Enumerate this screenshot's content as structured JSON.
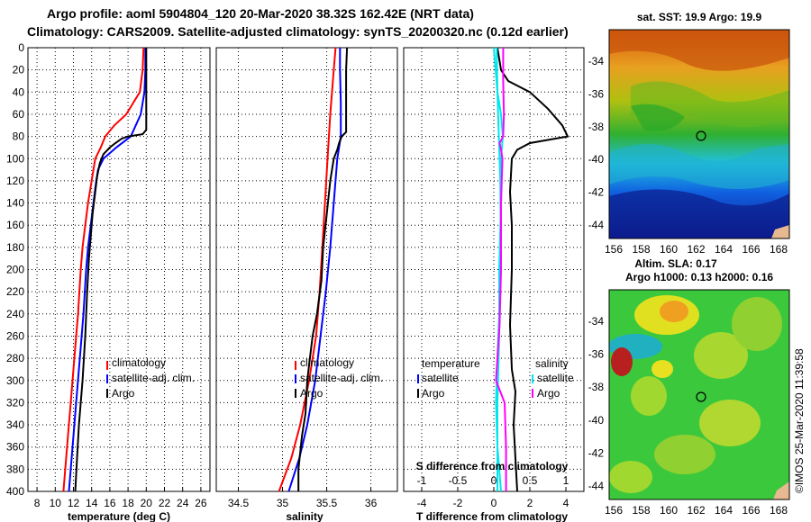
{
  "header": {
    "line1": "Argo profile: aoml 5904804_120 20-Mar-2020 38.32S 162.42E (NRT data)",
    "line2": "Climatology: CARS2009. Satellite-adjusted climatology: synTS_20200320.nc (0.12d earlier)"
  },
  "colors": {
    "climatology": "#ff0000",
    "satellite": "#0000ff",
    "argo": "#000000",
    "t_diff_satellite": "#00e5ee",
    "t_diff_argo": "#000000",
    "s_diff_satellite": "#00e5ee",
    "s_diff_argo": "#ff00ff"
  },
  "chart_data": [
    {
      "type": "line",
      "id": "temperature",
      "xlabel": "temperature (deg C)",
      "ylabel": "",
      "xlim": [
        7,
        27
      ],
      "ylim": [
        400,
        0
      ],
      "x_ticks": [
        8,
        10,
        12,
        14,
        16,
        18,
        20,
        22,
        24,
        26
      ],
      "y_ticks": [
        0,
        20,
        40,
        60,
        80,
        100,
        120,
        140,
        160,
        180,
        200,
        220,
        240,
        260,
        280,
        300,
        320,
        340,
        360,
        380,
        400
      ],
      "legend": [
        "climatology",
        "satellite-adj. clim.",
        "Argo"
      ],
      "series": [
        {
          "name": "climatology",
          "color": "#ff0000",
          "points": [
            [
              19.7,
              0
            ],
            [
              19.6,
              20
            ],
            [
              19.3,
              40
            ],
            [
              17.8,
              60
            ],
            [
              16.5,
              70
            ],
            [
              15.5,
              80
            ],
            [
              15.0,
              90
            ],
            [
              14.4,
              100
            ],
            [
              14.0,
              120
            ],
            [
              13.6,
              140
            ],
            [
              13.3,
              160
            ],
            [
              13.0,
              180
            ],
            [
              12.8,
              200
            ],
            [
              12.5,
              240
            ],
            [
              12.1,
              280
            ],
            [
              11.7,
              320
            ],
            [
              11.3,
              360
            ],
            [
              10.9,
              400
            ]
          ]
        },
        {
          "name": "satellite-adj. clim.",
          "color": "#0000ff",
          "points": [
            [
              19.9,
              0
            ],
            [
              19.9,
              20
            ],
            [
              19.8,
              40
            ],
            [
              19.4,
              60
            ],
            [
              18.3,
              80
            ],
            [
              16.7,
              90
            ],
            [
              15.3,
              100
            ],
            [
              14.7,
              110
            ],
            [
              14.5,
              120
            ],
            [
              14.2,
              140
            ],
            [
              13.9,
              160
            ],
            [
              13.6,
              180
            ],
            [
              13.4,
              200
            ],
            [
              13.1,
              240
            ],
            [
              12.7,
              280
            ],
            [
              12.3,
              320
            ],
            [
              11.9,
              360
            ],
            [
              11.5,
              400
            ]
          ]
        },
        {
          "name": "Argo",
          "color": "#000000",
          "points": [
            [
              20.0,
              0
            ],
            [
              20.0,
              30
            ],
            [
              20.0,
              60
            ],
            [
              20.0,
              74
            ],
            [
              19.6,
              78
            ],
            [
              18.8,
              79
            ],
            [
              18.0,
              80
            ],
            [
              17.3,
              82
            ],
            [
              16.6,
              86
            ],
            [
              16.0,
              90
            ],
            [
              15.3,
              96
            ],
            [
              14.9,
              104
            ],
            [
              14.6,
              116
            ],
            [
              14.4,
              130
            ],
            [
              14.1,
              150
            ],
            [
              13.9,
              170
            ],
            [
              13.7,
              190
            ],
            [
              13.5,
              220
            ],
            [
              13.3,
              260
            ],
            [
              13.0,
              300
            ],
            [
              12.6,
              340
            ],
            [
              12.4,
              370
            ],
            [
              12.2,
              400
            ]
          ]
        }
      ]
    },
    {
      "type": "line",
      "id": "salinity",
      "xlabel": "salinity",
      "xlim": [
        34.25,
        36.3
      ],
      "ylim": [
        400,
        0
      ],
      "x_ticks": [
        34.5,
        35,
        35.5,
        36
      ],
      "x_tick_labels": [
        "34.5",
        "35",
        "35.5",
        "36"
      ],
      "legend": [
        "climatology",
        "satellite-adj. clim.",
        "Argo"
      ],
      "series": [
        {
          "name": "climatology",
          "color": "#ff0000",
          "points": [
            [
              35.6,
              0
            ],
            [
              35.58,
              20
            ],
            [
              35.54,
              60
            ],
            [
              35.51,
              100
            ],
            [
              35.48,
              140
            ],
            [
              35.45,
              180
            ],
            [
              35.42,
              220
            ],
            [
              35.38,
              260
            ],
            [
              35.3,
              300
            ],
            [
              35.2,
              340
            ],
            [
              35.1,
              370
            ],
            [
              34.96,
              400
            ]
          ]
        },
        {
          "name": "satellite-adj. clim.",
          "color": "#0000ff",
          "points": [
            [
              35.65,
              0
            ],
            [
              35.65,
              20
            ],
            [
              35.66,
              50
            ],
            [
              35.66,
              80
            ],
            [
              35.62,
              100
            ],
            [
              35.58,
              140
            ],
            [
              35.54,
              180
            ],
            [
              35.49,
              220
            ],
            [
              35.43,
              260
            ],
            [
              35.37,
              300
            ],
            [
              35.28,
              340
            ],
            [
              35.19,
              370
            ],
            [
              35.07,
              400
            ]
          ]
        },
        {
          "name": "Argo",
          "color": "#000000",
          "points": [
            [
              35.73,
              0
            ],
            [
              35.72,
              20
            ],
            [
              35.72,
              40
            ],
            [
              35.72,
              76
            ],
            [
              35.67,
              80
            ],
            [
              35.64,
              86
            ],
            [
              35.62,
              92
            ],
            [
              35.58,
              100
            ],
            [
              35.54,
              120
            ],
            [
              35.5,
              150
            ],
            [
              35.46,
              180
            ],
            [
              35.44,
              210
            ],
            [
              35.39,
              240
            ],
            [
              35.34,
              260
            ],
            [
              35.31,
              280
            ],
            [
              35.28,
              300
            ],
            [
              35.26,
              330
            ],
            [
              35.22,
              350
            ],
            [
              35.18,
              380
            ],
            [
              35.18,
              400
            ]
          ]
        }
      ]
    },
    {
      "type": "line",
      "id": "differences",
      "xlabel": "T difference from climatology",
      "top_axis_label": "S difference from climatology",
      "xlim": [
        -5,
        5
      ],
      "ylim": [
        400,
        0
      ],
      "x_ticks": [
        -4,
        -2,
        0,
        2,
        4
      ],
      "top_x_ticks": [
        -1,
        -0.5,
        0,
        0.5,
        1
      ],
      "top_x_tick_labels": [
        "-1",
        "-0.5",
        "0",
        "0.5",
        "1"
      ],
      "legend_left": {
        "title": "temperature",
        "items": [
          "satellite",
          "Argo"
        ]
      },
      "legend_right": {
        "title": "salinity",
        "items": [
          "satellite",
          "Argo"
        ]
      },
      "series": [
        {
          "name": "T diff satellite",
          "color": "#00e5ee",
          "axis": "T",
          "points": [
            [
              0.0,
              0
            ],
            [
              0.1,
              20
            ],
            [
              0.2,
              40
            ],
            [
              0.4,
              60
            ],
            [
              0.5,
              80
            ],
            [
              0.4,
              100
            ],
            [
              0.4,
              140
            ],
            [
              0.3,
              200
            ],
            [
              0.3,
              260
            ],
            [
              0.2,
              320
            ],
            [
              0.2,
              400
            ]
          ]
        },
        {
          "name": "T diff Argo",
          "color": "#000000",
          "axis": "T",
          "points": [
            [
              0.2,
              0
            ],
            [
              0.4,
              20
            ],
            [
              0.8,
              30
            ],
            [
              2.0,
              40
            ],
            [
              3.0,
              55
            ],
            [
              3.8,
              70
            ],
            [
              4.1,
              80
            ],
            [
              2.0,
              86
            ],
            [
              1.3,
              92
            ],
            [
              1.0,
              100
            ],
            [
              0.9,
              130
            ],
            [
              1.0,
              160
            ],
            [
              1.0,
              200
            ],
            [
              0.9,
              250
            ],
            [
              1.0,
              290
            ],
            [
              1.2,
              310
            ],
            [
              1.1,
              340
            ],
            [
              1.2,
              370
            ],
            [
              1.3,
              400
            ]
          ]
        },
        {
          "name": "S diff satellite",
          "color": "#00e5ee",
          "axis": "S",
          "points": [
            [
              0.04,
              0
            ],
            [
              0.05,
              40
            ],
            [
              0.07,
              80
            ],
            [
              0.09,
              120
            ],
            [
              0.1,
              200
            ],
            [
              0.05,
              280
            ],
            [
              0.03,
              320
            ],
            [
              0.05,
              360
            ],
            [
              0.1,
              400
            ]
          ]
        },
        {
          "name": "S diff Argo",
          "color": "#ff00ff",
          "axis": "S",
          "points": [
            [
              0.13,
              0
            ],
            [
              0.13,
              30
            ],
            [
              0.14,
              60
            ],
            [
              0.13,
              80
            ],
            [
              0.08,
              86
            ],
            [
              0.1,
              92
            ],
            [
              0.12,
              100
            ],
            [
              0.1,
              140
            ],
            [
              0.1,
              200
            ],
            [
              0.08,
              250
            ],
            [
              0.03,
              300
            ],
            [
              0.15,
              320
            ],
            [
              0.17,
              360
            ],
            [
              0.17,
              400
            ]
          ]
        }
      ]
    }
  ],
  "maps": {
    "sst": {
      "title": "sat. SST: 19.9 Argo: 19.9",
      "lat_ticks": [
        "-34",
        "-36",
        "-38",
        "-40",
        "-42",
        "-44"
      ],
      "lon_ticks": [
        "156",
        "158",
        "160",
        "162",
        "164",
        "166",
        "168"
      ]
    },
    "sla": {
      "title_line1": "Altim. SLA: 0.17",
      "title_line2": "Argo h1000: 0.13 h2000: 0.16",
      "lat_ticks": [
        "-34",
        "-36",
        "-38",
        "-40",
        "-42",
        "-44"
      ],
      "lon_ticks": [
        "156",
        "158",
        "160",
        "162",
        "164",
        "166",
        "168"
      ]
    }
  },
  "credit": "©IMOS 25-Mar-2020 11:39:58"
}
